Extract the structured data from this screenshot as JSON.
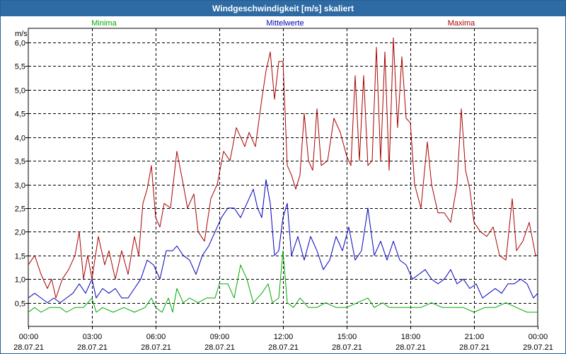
{
  "window": {
    "title": "Windgeschwindigkeit [m/s] skaliert"
  },
  "chart_data": {
    "type": "line",
    "title": "Windgeschwindigkeit [m/s] skaliert",
    "ylabel": "m/s",
    "xlabel": "",
    "ylim": [
      0,
      6.3
    ],
    "xlim": [
      0,
      24
    ],
    "grid": true,
    "yticks": [
      {
        "v": 0.5,
        "label": "0,5"
      },
      {
        "v": 1.0,
        "label": "1,0"
      },
      {
        "v": 1.5,
        "label": "1,5"
      },
      {
        "v": 2.0,
        "label": "2,0"
      },
      {
        "v": 2.5,
        "label": "2,5"
      },
      {
        "v": 3.0,
        "label": "3,0"
      },
      {
        "v": 3.5,
        "label": "3,5"
      },
      {
        "v": 4.0,
        "label": "4,0"
      },
      {
        "v": 4.5,
        "label": "4,5"
      },
      {
        "v": 5.0,
        "label": "5,0"
      },
      {
        "v": 5.5,
        "label": "5,5"
      },
      {
        "v": 6.0,
        "label": "6,0"
      }
    ],
    "xticks": [
      {
        "v": 0,
        "time": "00:00",
        "date": "28.07.21"
      },
      {
        "v": 3,
        "time": "03:00",
        "date": "28.07.21"
      },
      {
        "v": 6,
        "time": "06:00",
        "date": "28.07.21"
      },
      {
        "v": 9,
        "time": "09:00",
        "date": "28.07.21"
      },
      {
        "v": 12,
        "time": "12:00",
        "date": "28.07.21"
      },
      {
        "v": 15,
        "time": "15:00",
        "date": "28.07.21"
      },
      {
        "v": 18,
        "time": "18:00",
        "date": "28.07.21"
      },
      {
        "v": 21,
        "time": "21:00",
        "date": "28.07.21"
      },
      {
        "v": 24,
        "time": "00:00",
        "date": "29.07.21"
      }
    ],
    "series": [
      {
        "name": "Minima",
        "color": "#00aa00",
        "legend_position": "left",
        "points": [
          [
            0,
            0.3
          ],
          [
            0.3,
            0.4
          ],
          [
            0.6,
            0.3
          ],
          [
            1.0,
            0.4
          ],
          [
            1.5,
            0.4
          ],
          [
            1.8,
            0.3
          ],
          [
            2.2,
            0.4
          ],
          [
            2.6,
            0.4
          ],
          [
            3.0,
            0.6
          ],
          [
            3.2,
            0.3
          ],
          [
            3.5,
            0.4
          ],
          [
            4.0,
            0.3
          ],
          [
            4.5,
            0.4
          ],
          [
            5.0,
            0.3
          ],
          [
            5.5,
            0.4
          ],
          [
            5.8,
            0.6
          ],
          [
            6.0,
            0.4
          ],
          [
            6.3,
            0.3
          ],
          [
            6.6,
            0.6
          ],
          [
            6.8,
            0.3
          ],
          [
            7.0,
            0.8
          ],
          [
            7.3,
            0.5
          ],
          [
            7.6,
            0.6
          ],
          [
            8.0,
            0.5
          ],
          [
            8.4,
            0.6
          ],
          [
            8.8,
            0.6
          ],
          [
            9.0,
            0.9
          ],
          [
            9.4,
            0.9
          ],
          [
            9.7,
            0.6
          ],
          [
            10.0,
            1.3
          ],
          [
            10.3,
            1.0
          ],
          [
            10.6,
            0.5
          ],
          [
            11.0,
            0.7
          ],
          [
            11.3,
            0.9
          ],
          [
            11.5,
            0.5
          ],
          [
            11.8,
            0.6
          ],
          [
            12.0,
            1.6
          ],
          [
            12.2,
            0.5
          ],
          [
            12.5,
            0.4
          ],
          [
            12.8,
            0.6
          ],
          [
            13.2,
            0.4
          ],
          [
            13.6,
            0.4
          ],
          [
            14.0,
            0.5
          ],
          [
            14.5,
            0.4
          ],
          [
            15.0,
            0.4
          ],
          [
            15.5,
            0.5
          ],
          [
            16.0,
            0.6
          ],
          [
            16.3,
            0.4
          ],
          [
            16.7,
            0.5
          ],
          [
            17.0,
            0.4
          ],
          [
            17.5,
            0.4
          ],
          [
            18.0,
            0.4
          ],
          [
            18.5,
            0.4
          ],
          [
            19.0,
            0.5
          ],
          [
            19.5,
            0.4
          ],
          [
            20.0,
            0.4
          ],
          [
            20.5,
            0.4
          ],
          [
            21.0,
            0.3
          ],
          [
            21.5,
            0.4
          ],
          [
            22.0,
            0.4
          ],
          [
            22.5,
            0.5
          ],
          [
            23.0,
            0.4
          ],
          [
            23.5,
            0.3
          ],
          [
            24.0,
            0.3
          ]
        ]
      },
      {
        "name": "Mittelwerte",
        "color": "#0000bb",
        "legend_position": "center",
        "points": [
          [
            0,
            0.6
          ],
          [
            0.3,
            0.7
          ],
          [
            0.6,
            0.6
          ],
          [
            0.9,
            0.5
          ],
          [
            1.2,
            0.6
          ],
          [
            1.5,
            0.5
          ],
          [
            1.8,
            0.6
          ],
          [
            2.1,
            0.7
          ],
          [
            2.4,
            0.9
          ],
          [
            2.7,
            0.7
          ],
          [
            3.0,
            1.0
          ],
          [
            3.2,
            0.6
          ],
          [
            3.5,
            0.8
          ],
          [
            3.8,
            0.7
          ],
          [
            4.1,
            0.8
          ],
          [
            4.4,
            0.6
          ],
          [
            4.7,
            0.6
          ],
          [
            5.0,
            0.8
          ],
          [
            5.3,
            1.0
          ],
          [
            5.6,
            1.4
          ],
          [
            5.9,
            1.3
          ],
          [
            6.2,
            1.0
          ],
          [
            6.5,
            1.6
          ],
          [
            6.8,
            1.6
          ],
          [
            7.0,
            1.7
          ],
          [
            7.3,
            1.5
          ],
          [
            7.6,
            1.4
          ],
          [
            7.9,
            1.1
          ],
          [
            8.2,
            1.5
          ],
          [
            8.5,
            1.7
          ],
          [
            8.8,
            2.0
          ],
          [
            9.1,
            2.3
          ],
          [
            9.4,
            2.5
          ],
          [
            9.7,
            2.5
          ],
          [
            10.0,
            2.3
          ],
          [
            10.3,
            2.6
          ],
          [
            10.6,
            2.9
          ],
          [
            10.8,
            2.5
          ],
          [
            11.0,
            2.3
          ],
          [
            11.2,
            3.1
          ],
          [
            11.4,
            2.6
          ],
          [
            11.6,
            1.5
          ],
          [
            11.8,
            1.6
          ],
          [
            12.0,
            2.3
          ],
          [
            12.2,
            2.6
          ],
          [
            12.4,
            1.5
          ],
          [
            12.7,
            1.9
          ],
          [
            13.0,
            1.4
          ],
          [
            13.3,
            1.9
          ],
          [
            13.6,
            1.6
          ],
          [
            13.9,
            1.2
          ],
          [
            14.2,
            1.4
          ],
          [
            14.5,
            1.9
          ],
          [
            14.8,
            1.6
          ],
          [
            15.1,
            2.1
          ],
          [
            15.4,
            1.4
          ],
          [
            15.7,
            1.6
          ],
          [
            16.0,
            2.5
          ],
          [
            16.3,
            1.5
          ],
          [
            16.6,
            1.8
          ],
          [
            16.9,
            1.4
          ],
          [
            17.2,
            1.8
          ],
          [
            17.5,
            1.4
          ],
          [
            17.8,
            1.3
          ],
          [
            18.1,
            1.0
          ],
          [
            18.4,
            1.1
          ],
          [
            18.7,
            1.2
          ],
          [
            19.0,
            1.0
          ],
          [
            19.3,
            0.9
          ],
          [
            19.6,
            1.0
          ],
          [
            19.9,
            1.2
          ],
          [
            20.2,
            0.9
          ],
          [
            20.5,
            1.0
          ],
          [
            20.8,
            0.8
          ],
          [
            21.1,
            0.9
          ],
          [
            21.4,
            0.6
          ],
          [
            21.7,
            0.7
          ],
          [
            22.0,
            0.8
          ],
          [
            22.3,
            0.7
          ],
          [
            22.6,
            0.9
          ],
          [
            22.9,
            0.9
          ],
          [
            23.2,
            1.0
          ],
          [
            23.5,
            0.9
          ],
          [
            23.8,
            0.6
          ],
          [
            24.0,
            0.7
          ]
        ]
      },
      {
        "name": "Maxima",
        "color": "#aa0000",
        "legend_position": "right",
        "points": [
          [
            0,
            1.3
          ],
          [
            0.3,
            1.5
          ],
          [
            0.6,
            1.1
          ],
          [
            0.9,
            0.8
          ],
          [
            1.1,
            1.0
          ],
          [
            1.3,
            0.6
          ],
          [
            1.6,
            1.0
          ],
          [
            1.9,
            1.2
          ],
          [
            2.2,
            1.5
          ],
          [
            2.4,
            2.0
          ],
          [
            2.6,
            1.0
          ],
          [
            2.8,
            1.5
          ],
          [
            3.0,
            1.0
          ],
          [
            3.3,
            1.9
          ],
          [
            3.6,
            1.3
          ],
          [
            3.8,
            1.6
          ],
          [
            4.1,
            1.0
          ],
          [
            4.4,
            1.6
          ],
          [
            4.7,
            1.1
          ],
          [
            5.0,
            1.9
          ],
          [
            5.2,
            1.5
          ],
          [
            5.4,
            2.6
          ],
          [
            5.6,
            2.9
          ],
          [
            5.8,
            3.4
          ],
          [
            6.0,
            2.3
          ],
          [
            6.2,
            2.1
          ],
          [
            6.4,
            2.6
          ],
          [
            6.7,
            2.5
          ],
          [
            7.0,
            3.7
          ],
          [
            7.3,
            3.0
          ],
          [
            7.5,
            2.5
          ],
          [
            7.8,
            2.8
          ],
          [
            8.0,
            2.0
          ],
          [
            8.3,
            1.8
          ],
          [
            8.6,
            2.7
          ],
          [
            8.9,
            3.0
          ],
          [
            9.2,
            3.7
          ],
          [
            9.5,
            3.5
          ],
          [
            9.8,
            4.2
          ],
          [
            10.0,
            4.0
          ],
          [
            10.2,
            3.8
          ],
          [
            10.4,
            4.1
          ],
          [
            10.7,
            3.8
          ],
          [
            11.0,
            4.8
          ],
          [
            11.2,
            5.4
          ],
          [
            11.4,
            5.8
          ],
          [
            11.6,
            4.8
          ],
          [
            11.8,
            5.6
          ],
          [
            12.0,
            5.6
          ],
          [
            12.2,
            3.4
          ],
          [
            12.4,
            3.2
          ],
          [
            12.6,
            2.9
          ],
          [
            12.8,
            3.2
          ],
          [
            13.0,
            4.5
          ],
          [
            13.2,
            3.5
          ],
          [
            13.4,
            3.3
          ],
          [
            13.6,
            4.6
          ],
          [
            13.8,
            3.4
          ],
          [
            14.1,
            3.5
          ],
          [
            14.4,
            4.4
          ],
          [
            14.7,
            4.1
          ],
          [
            15.0,
            3.6
          ],
          [
            15.2,
            3.4
          ],
          [
            15.4,
            5.3
          ],
          [
            15.6,
            3.5
          ],
          [
            15.8,
            5.3
          ],
          [
            16.0,
            3.4
          ],
          [
            16.2,
            3.5
          ],
          [
            16.4,
            5.9
          ],
          [
            16.6,
            3.5
          ],
          [
            16.8,
            5.8
          ],
          [
            17.0,
            3.3
          ],
          [
            17.2,
            6.1
          ],
          [
            17.4,
            4.2
          ],
          [
            17.6,
            5.7
          ],
          [
            17.8,
            4.4
          ],
          [
            18.0,
            4.3
          ],
          [
            18.2,
            3.0
          ],
          [
            18.5,
            2.5
          ],
          [
            18.8,
            3.9
          ],
          [
            19.0,
            3.0
          ],
          [
            19.3,
            2.4
          ],
          [
            19.6,
            2.4
          ],
          [
            19.9,
            2.2
          ],
          [
            20.2,
            3.0
          ],
          [
            20.4,
            4.6
          ],
          [
            20.6,
            3.3
          ],
          [
            20.8,
            2.9
          ],
          [
            21.0,
            2.2
          ],
          [
            21.3,
            2.0
          ],
          [
            21.6,
            1.9
          ],
          [
            21.9,
            2.1
          ],
          [
            22.2,
            1.5
          ],
          [
            22.5,
            1.4
          ],
          [
            22.8,
            2.7
          ],
          [
            23.0,
            1.6
          ],
          [
            23.3,
            1.8
          ],
          [
            23.6,
            2.2
          ],
          [
            23.9,
            1.5
          ],
          [
            24.0,
            1.5
          ]
        ]
      }
    ]
  }
}
